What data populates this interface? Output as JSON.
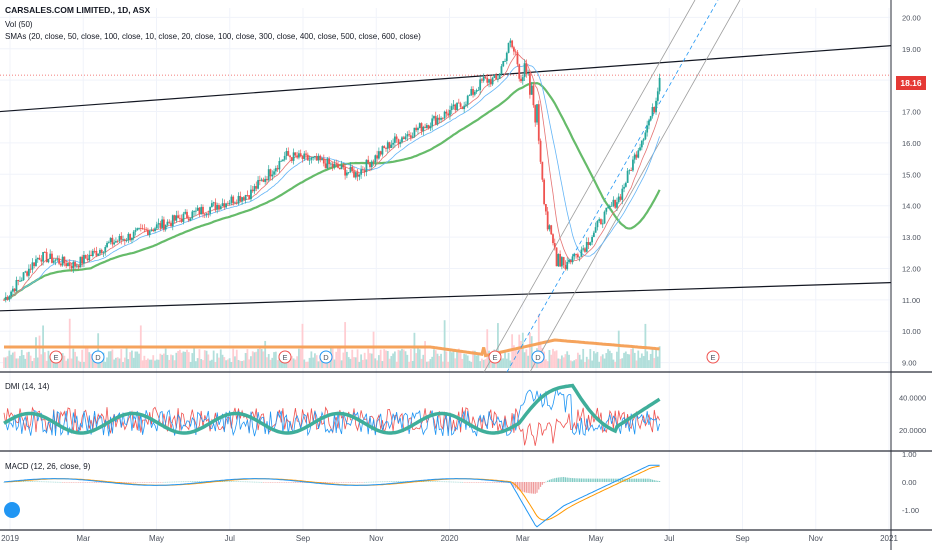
{
  "header": {
    "title": "CARSALES.COM LIMITED., 1D, ASX",
    "volume_label": "Vol (50)",
    "sma_label": "SMAs (20, close, 50, close, 100, close, 10, close, 20, close, 100, close, 300, close, 400, close, 500, close, 600, close)",
    "dmi_label": "DMI (14, 14)",
    "macd_label": "MACD (12, 26, close, 9)"
  },
  "price_badge": "18.16",
  "colors": {
    "up": "#26a69a",
    "down": "#ef5350",
    "sma_slow": "#66bb6a",
    "sma_fast_red": "#e57373",
    "sma_fast_blue": "#64b5f6",
    "volume_ma": "#f5a35c",
    "dmi_adx": "#3fae9a",
    "macd_line": "#2196f3",
    "signal_line": "#ff9800"
  },
  "chart_data": [
    {
      "type": "candlestick",
      "panel": "price",
      "yticks": [
        "20.00",
        "19.00",
        "18.00",
        "17.00",
        "16.00",
        "15.00",
        "14.00",
        "13.00",
        "12.00",
        "11.00",
        "10.00",
        "9.00"
      ],
      "ylim": [
        8.7,
        20.3
      ],
      "x_labels": [
        "2019",
        "Mar",
        "May",
        "Jul",
        "Sep",
        "Nov",
        "2020",
        "Mar",
        "May",
        "Jul",
        "Sep",
        "Nov",
        "2021"
      ],
      "close_series": {
        "t": [
          0,
          0.04,
          0.08,
          0.12,
          0.16,
          0.2,
          0.24,
          0.28,
          0.32,
          0.36,
          0.4,
          0.44,
          0.48,
          0.52,
          0.545,
          0.56,
          0.575,
          0.59,
          0.605,
          0.62,
          0.64,
          0.66,
          0.68,
          0.7,
          0.72,
          0.74,
          0.745
        ],
        "close": [
          11.0,
          12.4,
          12.1,
          12.8,
          13.2,
          13.6,
          14.0,
          14.4,
          15.6,
          15.4,
          15.0,
          16.0,
          16.6,
          17.2,
          18.0,
          18.0,
          19.2,
          18.2,
          17.0,
          12.8,
          12.2,
          12.7,
          13.6,
          14.3,
          15.8,
          17.2,
          18.2
        ]
      },
      "current_price": 18.16,
      "annotations": [
        "E",
        "D",
        "E",
        "D",
        "E",
        "D",
        "E"
      ]
    },
    {
      "type": "line",
      "panel": "dmi",
      "title": "DMI (14, 14)",
      "yticks": [
        "40.0000",
        "20.0000"
      ],
      "series": []
    },
    {
      "type": "line",
      "panel": "macd",
      "title": "MACD (12, 26, close, 9)",
      "yticks": [
        "1.00",
        "0.00",
        "-1.00"
      ],
      "series": []
    }
  ]
}
